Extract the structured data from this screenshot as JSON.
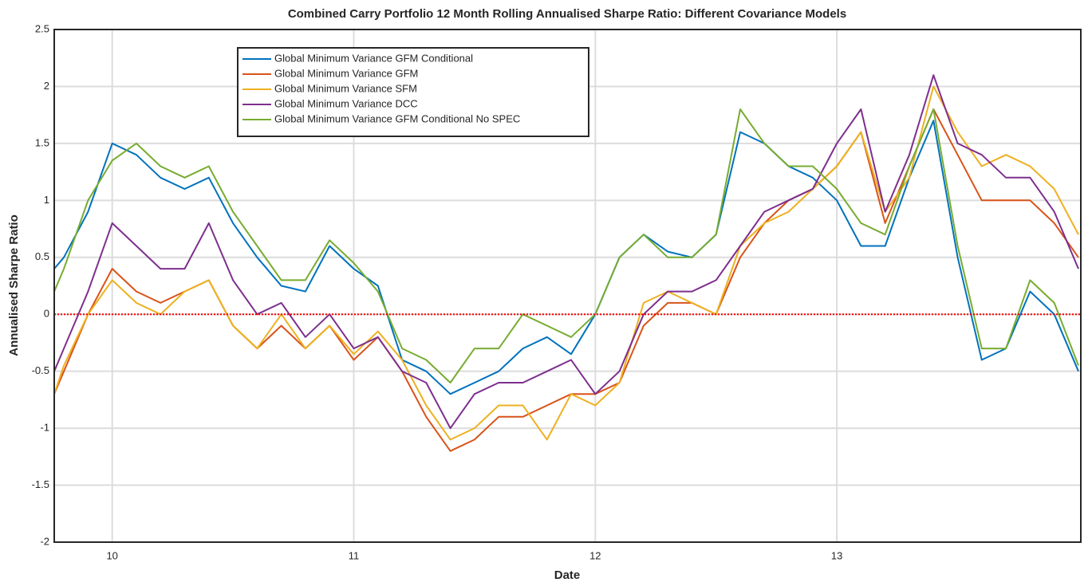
{
  "chart_data": {
    "type": "line",
    "title": "Combined Carry Portfolio 12 Month Rolling Annualised Sharpe Ratio: Different Covariance Models",
    "xlabel": "Date",
    "ylabel": "Annualised Sharpe Ratio",
    "x": [
      9.76,
      9.8,
      9.9,
      10.0,
      10.1,
      10.2,
      10.3,
      10.4,
      10.5,
      10.6,
      10.7,
      10.8,
      10.9,
      11.0,
      11.1,
      11.2,
      11.3,
      11.4,
      11.5,
      11.6,
      11.7,
      11.8,
      11.9,
      12.0,
      12.1,
      12.2,
      12.3,
      12.4,
      12.5,
      12.6,
      12.7,
      12.8,
      12.9,
      13.0,
      13.1,
      13.2,
      13.3,
      13.4,
      13.5,
      13.6,
      13.7,
      13.8,
      13.9,
      14.0
    ],
    "series": [
      {
        "name": "Global Minimum Variance GFM Conditional",
        "color": "#0072bd",
        "values": [
          0.4,
          0.5,
          0.9,
          1.5,
          1.4,
          1.2,
          1.1,
          1.2,
          0.8,
          0.5,
          0.25,
          0.2,
          0.6,
          0.4,
          0.25,
          -0.4,
          -0.5,
          -0.7,
          -0.6,
          -0.5,
          -0.3,
          -0.2,
          -0.35,
          0.0,
          0.5,
          0.7,
          0.55,
          0.5,
          0.7,
          1.6,
          1.5,
          1.3,
          1.2,
          1.0,
          0.6,
          0.6,
          1.2,
          1.7,
          0.5,
          -0.4,
          -0.3,
          0.2,
          0.0,
          -0.5
        ]
      },
      {
        "name": "Global Minimum Variance GFM",
        "color": "#d95319",
        "values": [
          -0.7,
          -0.5,
          0.0,
          0.4,
          0.2,
          0.1,
          0.2,
          0.3,
          -0.1,
          -0.3,
          -0.1,
          -0.3,
          -0.1,
          -0.4,
          -0.2,
          -0.5,
          -0.9,
          -1.2,
          -1.1,
          -0.9,
          -0.9,
          -0.8,
          -0.7,
          -0.7,
          -0.6,
          -0.1,
          0.1,
          0.1,
          0.0,
          0.5,
          0.8,
          1.0,
          1.1,
          1.3,
          1.6,
          0.8,
          1.3,
          1.8,
          1.4,
          1.0,
          1.0,
          1.0,
          0.8,
          0.5
        ]
      },
      {
        "name": "Global Minimum Variance SFM",
        "color": "#edb120",
        "values": [
          -0.7,
          -0.45,
          0.0,
          0.3,
          0.1,
          0.0,
          0.2,
          0.3,
          -0.1,
          -0.3,
          0.0,
          -0.3,
          -0.1,
          -0.35,
          -0.15,
          -0.4,
          -0.8,
          -1.1,
          -1.0,
          -0.8,
          -0.8,
          -1.1,
          -0.7,
          -0.8,
          -0.6,
          0.1,
          0.2,
          0.1,
          0.0,
          0.6,
          0.8,
          0.9,
          1.1,
          1.3,
          1.6,
          0.9,
          1.2,
          2.0,
          1.6,
          1.3,
          1.4,
          1.3,
          1.1,
          0.7
        ]
      },
      {
        "name": "Global Minimum Variance DCC",
        "color": "#7e2f8e",
        "values": [
          -0.5,
          -0.3,
          0.2,
          0.8,
          0.6,
          0.4,
          0.4,
          0.8,
          0.3,
          0.0,
          0.1,
          -0.2,
          0.0,
          -0.3,
          -0.2,
          -0.5,
          -0.6,
          -1.0,
          -0.7,
          -0.6,
          -0.6,
          -0.5,
          -0.4,
          -0.7,
          -0.5,
          0.0,
          0.2,
          0.2,
          0.3,
          0.6,
          0.9,
          1.0,
          1.1,
          1.5,
          1.8,
          0.9,
          1.4,
          2.1,
          1.5,
          1.4,
          1.2,
          1.2,
          0.9,
          0.4
        ]
      },
      {
        "name": "Global Minimum Variance GFM Conditional No SPEC",
        "color": "#77ac30",
        "values": [
          0.2,
          0.4,
          1.0,
          1.35,
          1.5,
          1.3,
          1.2,
          1.3,
          0.9,
          0.6,
          0.3,
          0.3,
          0.65,
          0.45,
          0.2,
          -0.3,
          -0.4,
          -0.6,
          -0.3,
          -0.3,
          0.0,
          -0.1,
          -0.2,
          0.0,
          0.5,
          0.7,
          0.5,
          0.5,
          0.7,
          1.8,
          1.5,
          1.3,
          1.3,
          1.1,
          0.8,
          0.7,
          1.3,
          1.8,
          0.6,
          -0.3,
          -0.3,
          0.3,
          0.1,
          -0.45
        ]
      }
    ],
    "xlim": [
      9.76,
      14.01
    ],
    "ylim": [
      -2,
      2.5
    ],
    "xticks": [
      10,
      11,
      12,
      13
    ],
    "yticks": [
      -2,
      -1.5,
      -1,
      -0.5,
      0,
      0.5,
      1,
      1.5,
      2,
      2.5
    ],
    "grid": true,
    "legend": "top-left",
    "reference_line": {
      "value": 0,
      "color": "#ff0000"
    }
  }
}
